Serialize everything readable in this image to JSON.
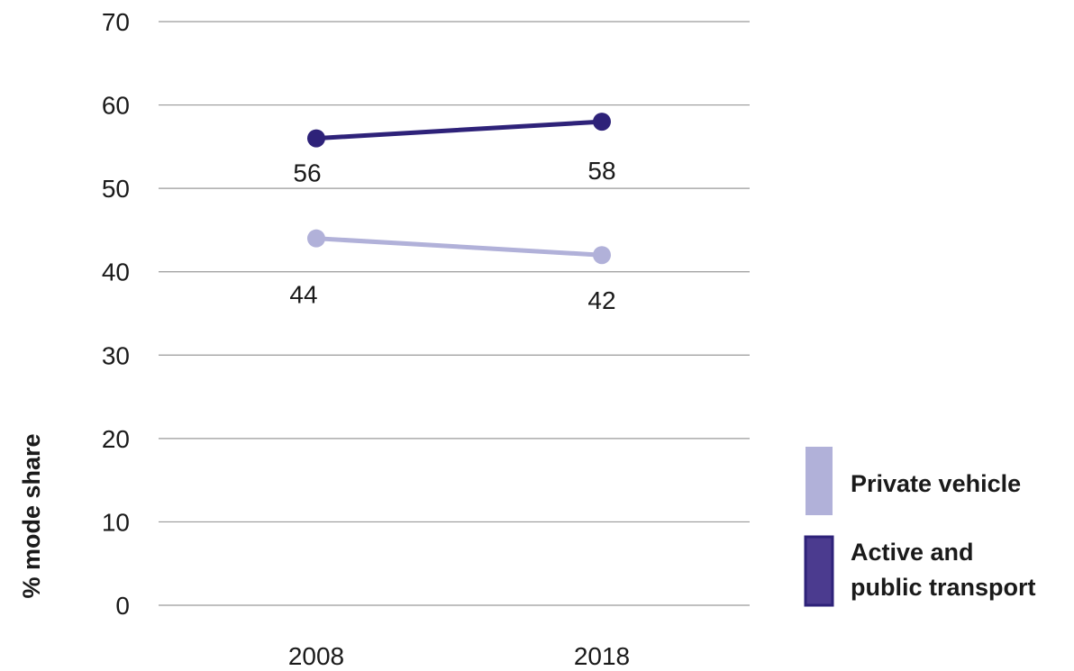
{
  "chart_data": {
    "type": "line",
    "x": [
      "2008",
      "2018"
    ],
    "series": [
      {
        "name": "Active and public transport",
        "values": [
          56,
          58
        ],
        "data_labels": [
          "56",
          "58"
        ],
        "color": "#2e2279"
      },
      {
        "name": "Private vehicle",
        "values": [
          44,
          42
        ],
        "data_labels": [
          "44",
          "42"
        ],
        "color": "#b1b1d9"
      }
    ],
    "ylabel": "% mode share",
    "xlabel": "",
    "ylim": [
      0,
      70
    ],
    "yticks": [
      0,
      10,
      20,
      30,
      40,
      50,
      60,
      70
    ],
    "grid": true,
    "legend": {
      "placement": "right",
      "items": [
        {
          "label_lines": [
            "Private vehicle"
          ],
          "color": "#b1b1d9"
        },
        {
          "label_lines": [
            "Active and",
            "public transport"
          ],
          "color": "#4b3b8f",
          "border": "#2e2279"
        }
      ]
    }
  }
}
